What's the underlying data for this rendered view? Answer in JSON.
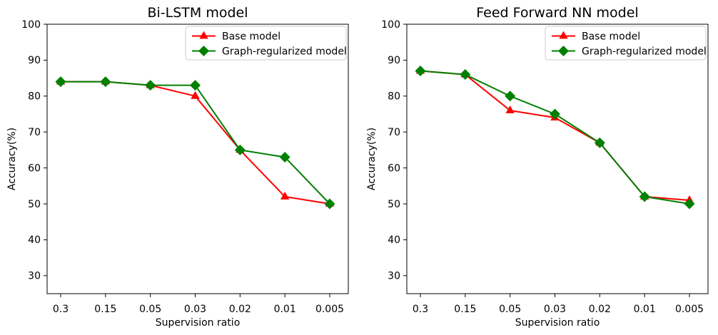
{
  "figure": {
    "background": "#ffffff",
    "text_color": "#000000",
    "axis_color": "#000000",
    "legend_border_color": "#cccccc"
  },
  "colors": {
    "base_model": "#ff0000",
    "graph_regularized_model": "#008000"
  },
  "chart_data": [
    {
      "type": "line",
      "title": "Bi-LSTM model",
      "xlabel": "Supervision ratio",
      "ylabel": "Accuracy(%)",
      "categories": [
        "0.3",
        "0.15",
        "0.05",
        "0.03",
        "0.02",
        "0.01",
        "0.005"
      ],
      "yticks": [
        30,
        40,
        50,
        60,
        70,
        80,
        90,
        100
      ],
      "ylim": [
        25,
        100
      ],
      "grid": false,
      "legend_position": "upper right",
      "series": [
        {
          "name": "Base model",
          "color": "#ff0000",
          "marker": "triangle-up",
          "values": [
            84,
            84,
            83,
            80,
            65,
            52,
            50
          ]
        },
        {
          "name": "Graph-regularized model",
          "color": "#008000",
          "marker": "diamond",
          "values": [
            84,
            84,
            83,
            83,
            65,
            63,
            50
          ]
        }
      ]
    },
    {
      "type": "line",
      "title": "Feed Forward NN model",
      "xlabel": "Supervision ratio",
      "ylabel": "Accuracy(%)",
      "categories": [
        "0.3",
        "0.15",
        "0.05",
        "0.03",
        "0.02",
        "0.01",
        "0.005"
      ],
      "yticks": [
        30,
        40,
        50,
        60,
        70,
        80,
        90,
        100
      ],
      "ylim": [
        25,
        100
      ],
      "grid": false,
      "legend_position": "upper right",
      "series": [
        {
          "name": "Base model",
          "color": "#ff0000",
          "marker": "triangle-up",
          "values": [
            87,
            86,
            76,
            74,
            67,
            52,
            51
          ]
        },
        {
          "name": "Graph-regularized model",
          "color": "#008000",
          "marker": "diamond",
          "values": [
            87,
            86,
            80,
            75,
            67,
            52,
            50
          ]
        }
      ]
    }
  ]
}
